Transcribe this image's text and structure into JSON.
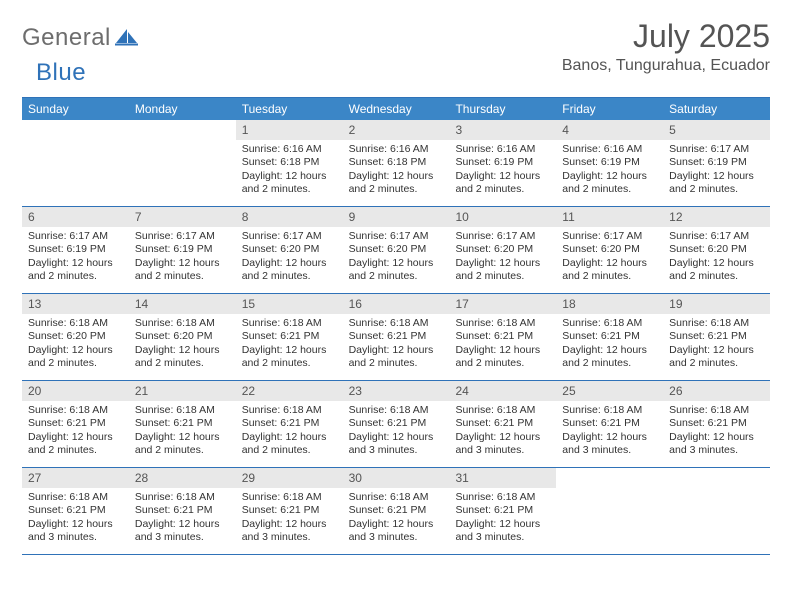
{
  "brand": {
    "part1": "General",
    "part2": "Blue"
  },
  "title": "July 2025",
  "location": "Banos, Tungurahua, Ecuador",
  "colors": {
    "header_bar": "#3b86c7",
    "border": "#2f72b8",
    "daynum_bg": "#e8e8e8",
    "text": "#333333",
    "title_text": "#545454"
  },
  "dow": [
    "Sunday",
    "Monday",
    "Tuesday",
    "Wednesday",
    "Thursday",
    "Friday",
    "Saturday"
  ],
  "weeks": [
    [
      null,
      null,
      {
        "n": "1",
        "sunrise": "6:16 AM",
        "sunset": "6:18 PM",
        "daylight": "12 hours and 2 minutes."
      },
      {
        "n": "2",
        "sunrise": "6:16 AM",
        "sunset": "6:18 PM",
        "daylight": "12 hours and 2 minutes."
      },
      {
        "n": "3",
        "sunrise": "6:16 AM",
        "sunset": "6:19 PM",
        "daylight": "12 hours and 2 minutes."
      },
      {
        "n": "4",
        "sunrise": "6:16 AM",
        "sunset": "6:19 PM",
        "daylight": "12 hours and 2 minutes."
      },
      {
        "n": "5",
        "sunrise": "6:17 AM",
        "sunset": "6:19 PM",
        "daylight": "12 hours and 2 minutes."
      }
    ],
    [
      {
        "n": "6",
        "sunrise": "6:17 AM",
        "sunset": "6:19 PM",
        "daylight": "12 hours and 2 minutes."
      },
      {
        "n": "7",
        "sunrise": "6:17 AM",
        "sunset": "6:19 PM",
        "daylight": "12 hours and 2 minutes."
      },
      {
        "n": "8",
        "sunrise": "6:17 AM",
        "sunset": "6:20 PM",
        "daylight": "12 hours and 2 minutes."
      },
      {
        "n": "9",
        "sunrise": "6:17 AM",
        "sunset": "6:20 PM",
        "daylight": "12 hours and 2 minutes."
      },
      {
        "n": "10",
        "sunrise": "6:17 AM",
        "sunset": "6:20 PM",
        "daylight": "12 hours and 2 minutes."
      },
      {
        "n": "11",
        "sunrise": "6:17 AM",
        "sunset": "6:20 PM",
        "daylight": "12 hours and 2 minutes."
      },
      {
        "n": "12",
        "sunrise": "6:17 AM",
        "sunset": "6:20 PM",
        "daylight": "12 hours and 2 minutes."
      }
    ],
    [
      {
        "n": "13",
        "sunrise": "6:18 AM",
        "sunset": "6:20 PM",
        "daylight": "12 hours and 2 minutes."
      },
      {
        "n": "14",
        "sunrise": "6:18 AM",
        "sunset": "6:20 PM",
        "daylight": "12 hours and 2 minutes."
      },
      {
        "n": "15",
        "sunrise": "6:18 AM",
        "sunset": "6:21 PM",
        "daylight": "12 hours and 2 minutes."
      },
      {
        "n": "16",
        "sunrise": "6:18 AM",
        "sunset": "6:21 PM",
        "daylight": "12 hours and 2 minutes."
      },
      {
        "n": "17",
        "sunrise": "6:18 AM",
        "sunset": "6:21 PM",
        "daylight": "12 hours and 2 minutes."
      },
      {
        "n": "18",
        "sunrise": "6:18 AM",
        "sunset": "6:21 PM",
        "daylight": "12 hours and 2 minutes."
      },
      {
        "n": "19",
        "sunrise": "6:18 AM",
        "sunset": "6:21 PM",
        "daylight": "12 hours and 2 minutes."
      }
    ],
    [
      {
        "n": "20",
        "sunrise": "6:18 AM",
        "sunset": "6:21 PM",
        "daylight": "12 hours and 2 minutes."
      },
      {
        "n": "21",
        "sunrise": "6:18 AM",
        "sunset": "6:21 PM",
        "daylight": "12 hours and 2 minutes."
      },
      {
        "n": "22",
        "sunrise": "6:18 AM",
        "sunset": "6:21 PM",
        "daylight": "12 hours and 2 minutes."
      },
      {
        "n": "23",
        "sunrise": "6:18 AM",
        "sunset": "6:21 PM",
        "daylight": "12 hours and 3 minutes."
      },
      {
        "n": "24",
        "sunrise": "6:18 AM",
        "sunset": "6:21 PM",
        "daylight": "12 hours and 3 minutes."
      },
      {
        "n": "25",
        "sunrise": "6:18 AM",
        "sunset": "6:21 PM",
        "daylight": "12 hours and 3 minutes."
      },
      {
        "n": "26",
        "sunrise": "6:18 AM",
        "sunset": "6:21 PM",
        "daylight": "12 hours and 3 minutes."
      }
    ],
    [
      {
        "n": "27",
        "sunrise": "6:18 AM",
        "sunset": "6:21 PM",
        "daylight": "12 hours and 3 minutes."
      },
      {
        "n": "28",
        "sunrise": "6:18 AM",
        "sunset": "6:21 PM",
        "daylight": "12 hours and 3 minutes."
      },
      {
        "n": "29",
        "sunrise": "6:18 AM",
        "sunset": "6:21 PM",
        "daylight": "12 hours and 3 minutes."
      },
      {
        "n": "30",
        "sunrise": "6:18 AM",
        "sunset": "6:21 PM",
        "daylight": "12 hours and 3 minutes."
      },
      {
        "n": "31",
        "sunrise": "6:18 AM",
        "sunset": "6:21 PM",
        "daylight": "12 hours and 3 minutes."
      },
      null,
      null
    ]
  ],
  "labels": {
    "sunrise": "Sunrise: ",
    "sunset": "Sunset: ",
    "daylight": "Daylight: "
  }
}
